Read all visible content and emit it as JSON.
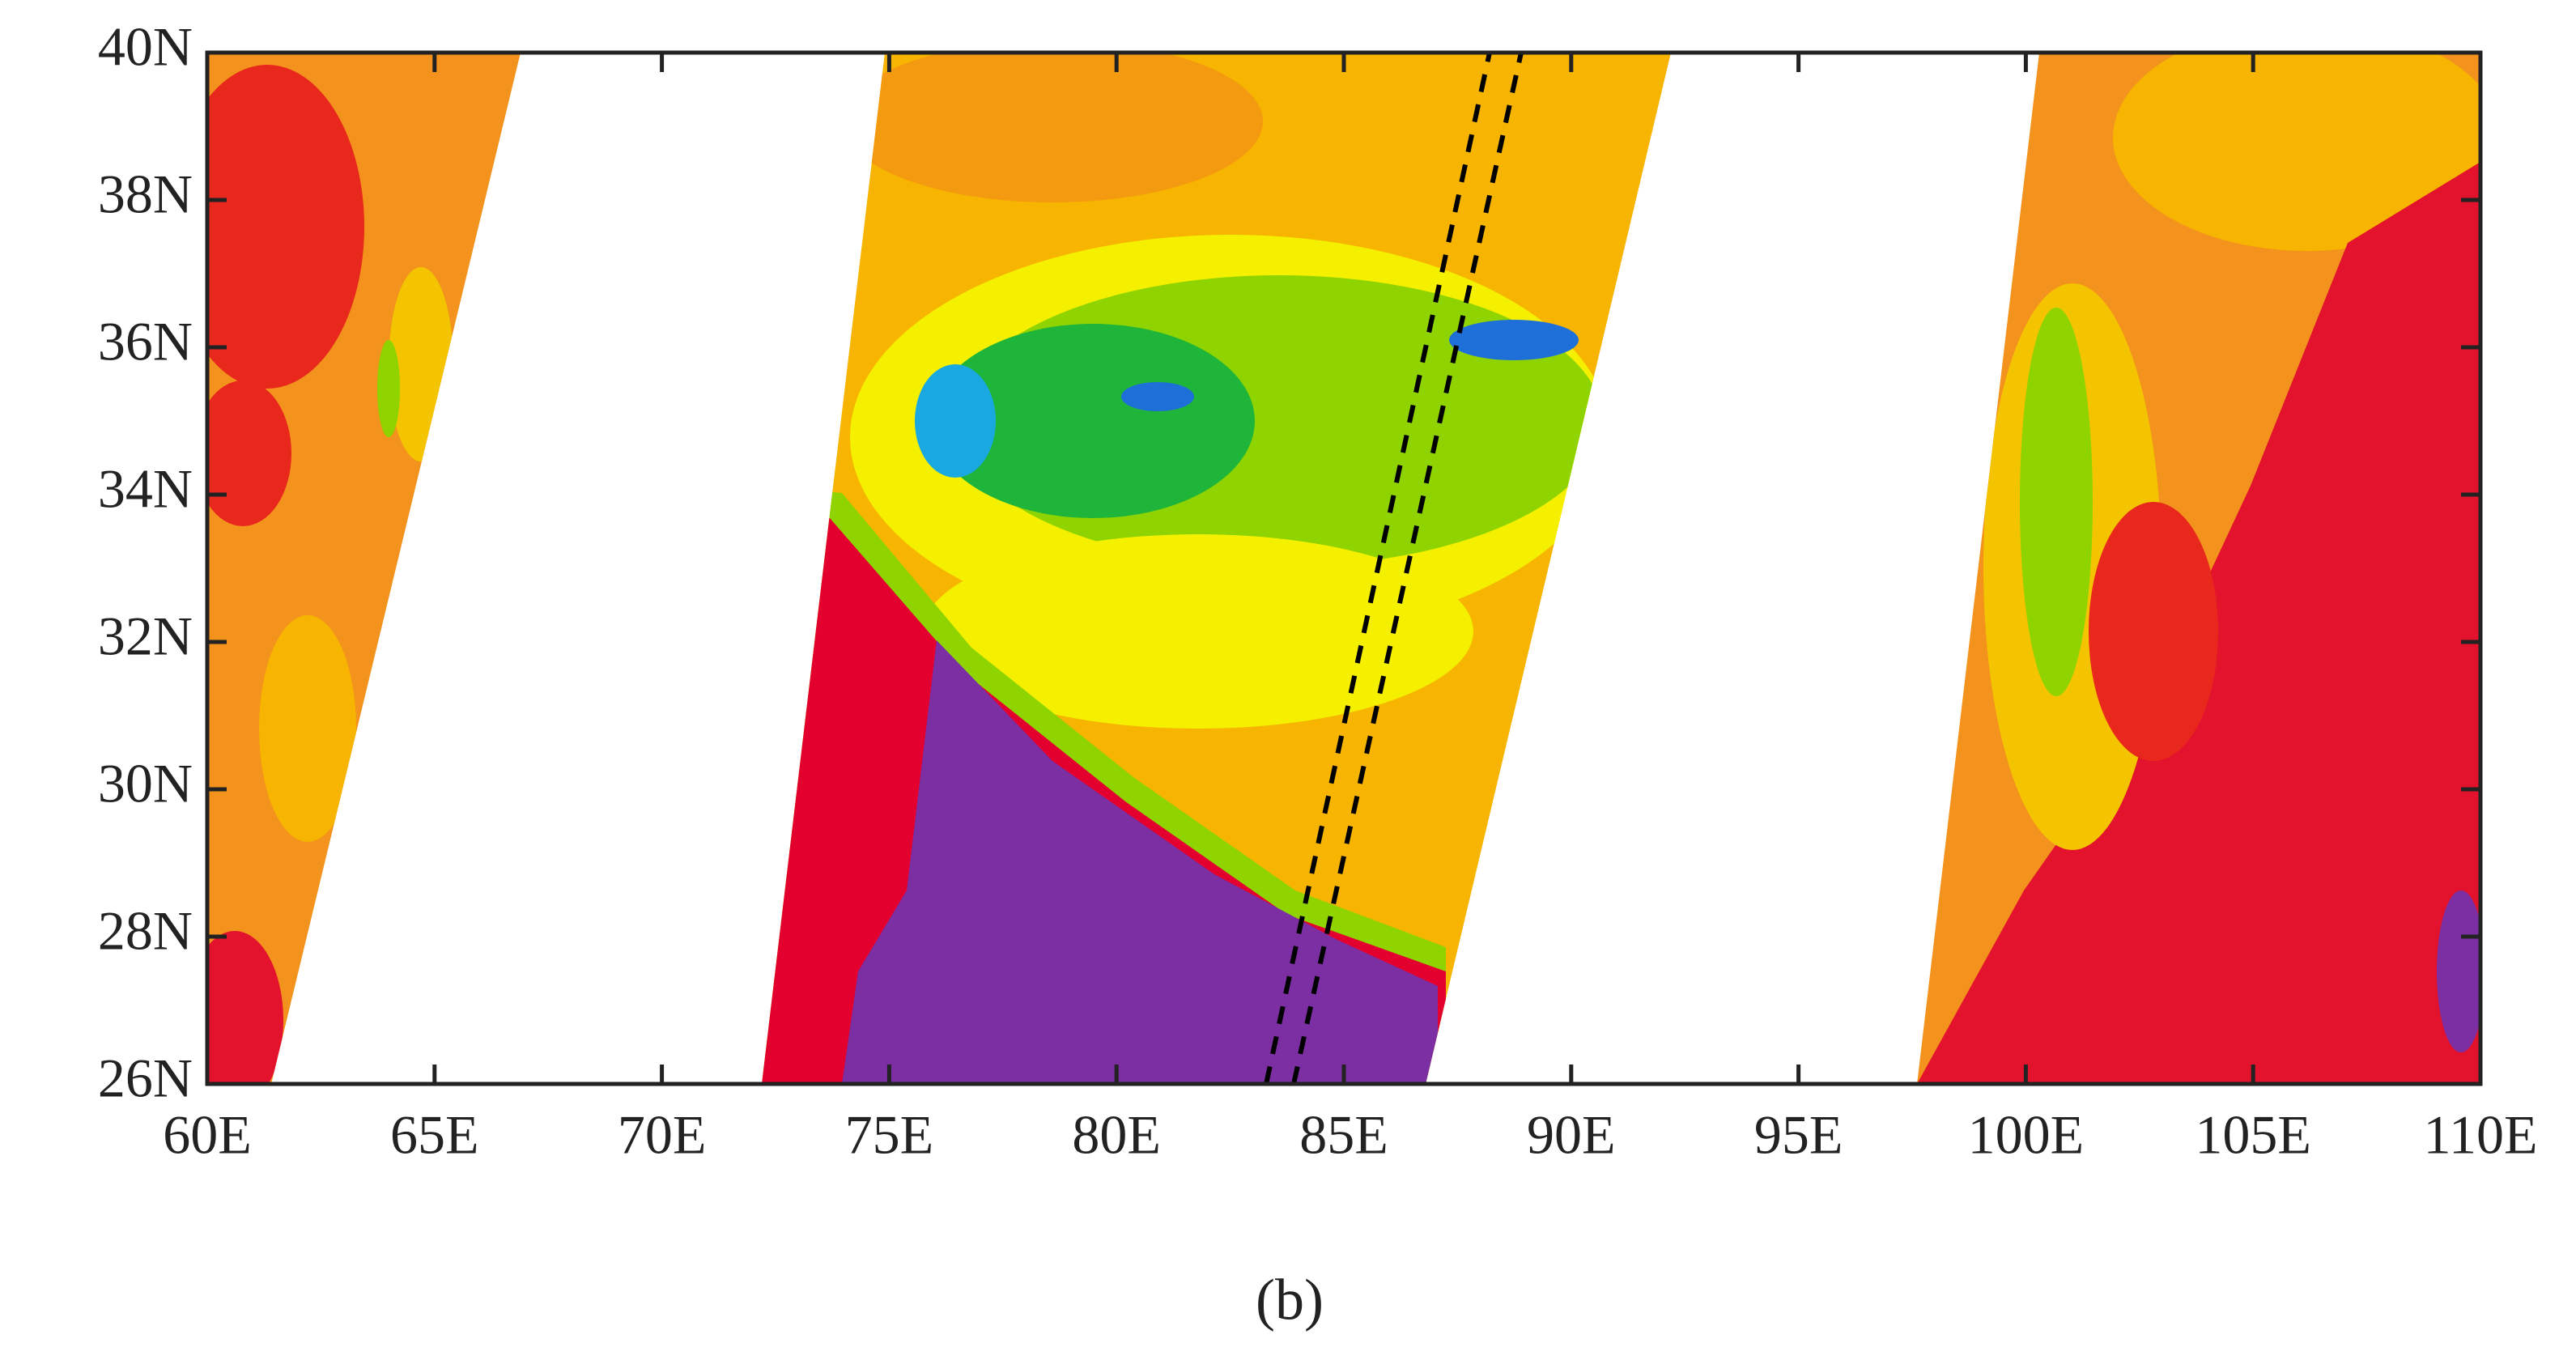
{
  "chart_data": {
    "type": "map",
    "caption": "(b)",
    "xlim": [
      60,
      110
    ],
    "ylim": [
      26,
      40
    ],
    "xticks": [
      {
        "value": 60,
        "label": "60E"
      },
      {
        "value": 65,
        "label": "65E"
      },
      {
        "value": 70,
        "label": "70E"
      },
      {
        "value": 75,
        "label": "75E"
      },
      {
        "value": 80,
        "label": "80E"
      },
      {
        "value": 85,
        "label": "85E"
      },
      {
        "value": 90,
        "label": "90E"
      },
      {
        "value": 95,
        "label": "95E"
      },
      {
        "value": 100,
        "label": "100E"
      },
      {
        "value": 105,
        "label": "105E"
      },
      {
        "value": 110,
        "label": "110E"
      }
    ],
    "yticks": [
      {
        "value": 26,
        "label": "26N"
      },
      {
        "value": 28,
        "label": "28N"
      },
      {
        "value": 30,
        "label": "30N"
      },
      {
        "value": 32,
        "label": "32N"
      },
      {
        "value": 34,
        "label": "34N"
      },
      {
        "value": 36,
        "label": "36N"
      },
      {
        "value": 38,
        "label": "38N"
      },
      {
        "value": 40,
        "label": "40N"
      }
    ]
  }
}
